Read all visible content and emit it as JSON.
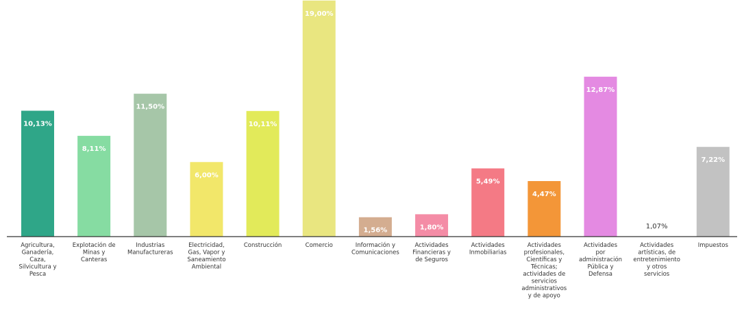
{
  "chart_data": {
    "type": "bar",
    "title": "",
    "xlabel": "",
    "ylabel": "",
    "ylim": [
      0,
      18.6
    ],
    "grid": false,
    "legend": "none",
    "categories": [
      "Agricultura, Ganadería, Caza, Silvicultura y Pesca",
      "Explotación de Minas y Canteras",
      "Industrias Manufactureras",
      "Electricidad, Gas, Vapor y Saneamiento Ambiental",
      "Construcción",
      "Comercio",
      "Información y Comunicaciones",
      "Actividades Financieras y de Seguros",
      "Actividades Inmobiliarias",
      "Actividades profesionales, Científicas y Técnicas; actividades de servicios administrativos y de apoyo",
      "Actividades por administración Pública y Defensa",
      "Actividades artísticas, de entretenimiento y otros servicios",
      "Impuestos"
    ],
    "series": [
      {
        "values": [
          10.13,
          8.11,
          11.5,
          6.0,
          10.11,
          19.0,
          1.56,
          1.8,
          5.49,
          4.47,
          12.87,
          1.07,
          7.22
        ],
        "labels": [
          "10,13%",
          "8,11%",
          "11,50%",
          "6,00%",
          "10,11%",
          "19,00%",
          "1,56%",
          "1,80%",
          "5,49%",
          "4,47%",
          "12,87%",
          "1,07%",
          "7,22%"
        ],
        "colors": [
          "#2fa688",
          "#86dca2",
          "#a6c6a8",
          "#f2e76a",
          "#e2ea5a",
          "#e9e680",
          "#d4ad90",
          "#f48ca6",
          "#f47a85",
          "#f39638",
          "#e48ae2",
          "#ffffff",
          "#c2c2c2"
        ]
      }
    ]
  }
}
